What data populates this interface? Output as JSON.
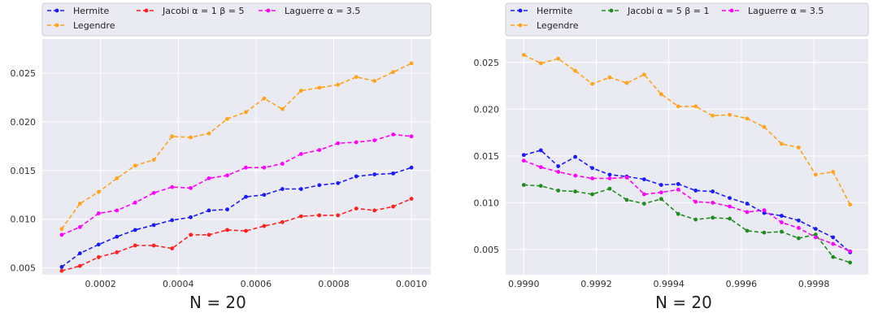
{
  "chart_data": [
    {
      "type": "line",
      "title": "N = 20",
      "xlabel": "",
      "ylabel": "",
      "xlim": [
        5e-05,
        0.00105
      ],
      "ylim": [
        0.0043,
        0.0285
      ],
      "x_ticks": [
        0.0002,
        0.0004,
        0.0006,
        0.0008,
        0.001
      ],
      "x_tick_labels": [
        "0.0002",
        "0.0004",
        "0.0006",
        "0.0008",
        "0.0010"
      ],
      "y_ticks": [
        0.005,
        0.01,
        0.015,
        0.02,
        0.025
      ],
      "y_tick_labels": [
        "0.005",
        "0.010",
        "0.015",
        "0.020",
        "0.025"
      ],
      "grid": true,
      "legend_placement": "top (above plot)",
      "x": [
        0.0001,
        0.000147,
        0.000195,
        0.000242,
        0.000289,
        0.000337,
        0.000384,
        0.000432,
        0.000479,
        0.000526,
        0.000574,
        0.000621,
        0.000668,
        0.000716,
        0.000763,
        0.000811,
        0.000858,
        0.000905,
        0.000953,
        0.001
      ],
      "series": [
        {
          "name": "Hermite",
          "color": "#1a1aff",
          "values": [
            0.0051,
            0.0065,
            0.0074,
            0.0082,
            0.0089,
            0.0094,
            0.0099,
            0.0102,
            0.0109,
            0.011,
            0.0123,
            0.0125,
            0.0131,
            0.0131,
            0.0135,
            0.0137,
            0.0144,
            0.0146,
            0.0147,
            0.0153
          ]
        },
        {
          "name": "Jacobi $\\alpha=1$ $\\beta=5$",
          "color": "#ff2020",
          "values": [
            0.0047,
            0.0052,
            0.0061,
            0.0066,
            0.0073,
            0.0073,
            0.007,
            0.0084,
            0.0084,
            0.0089,
            0.0088,
            0.0093,
            0.0097,
            0.0103,
            0.0104,
            0.0104,
            0.0111,
            0.0109,
            0.0113,
            0.0121
          ]
        },
        {
          "name": "Laguerre $\\alpha=3.5$",
          "color": "#ff00ff",
          "values": [
            0.0084,
            0.0092,
            0.0106,
            0.0109,
            0.0117,
            0.0127,
            0.0133,
            0.0132,
            0.0142,
            0.0145,
            0.0153,
            0.0153,
            0.0157,
            0.0167,
            0.0171,
            0.0178,
            0.0179,
            0.0181,
            0.0187,
            0.0185
          ]
        },
        {
          "name": "Legendre",
          "color": "#ffa31a",
          "values": [
            0.009,
            0.0116,
            0.0128,
            0.0142,
            0.0155,
            0.0161,
            0.0185,
            0.0184,
            0.0188,
            0.0203,
            0.021,
            0.0224,
            0.0213,
            0.0232,
            0.0235,
            0.0238,
            0.0246,
            0.0242,
            0.0251,
            0.026
          ]
        }
      ]
    },
    {
      "type": "line",
      "title": "N = 20",
      "xlabel": "",
      "ylabel": "",
      "xlim": [
        0.99895,
        0.99995
      ],
      "ylim": [
        0.0023,
        0.0275
      ],
      "x_ticks": [
        0.999,
        0.9992,
        0.9994,
        0.9996,
        0.9998
      ],
      "x_tick_labels": [
        "0.9990",
        "0.9992",
        "0.9994",
        "0.9996",
        "0.9998"
      ],
      "y_ticks": [
        0.005,
        0.01,
        0.015,
        0.02,
        0.025
      ],
      "y_tick_labels": [
        "0.005",
        "0.010",
        "0.015",
        "0.020",
        "0.025"
      ],
      "grid": true,
      "legend_placement": "top (above plot)",
      "x": [
        0.999,
        0.999047,
        0.999095,
        0.999142,
        0.999189,
        0.999237,
        0.999284,
        0.999332,
        0.999379,
        0.999426,
        0.999474,
        0.999521,
        0.999568,
        0.999616,
        0.999663,
        0.999711,
        0.999758,
        0.999805,
        0.999853,
        0.9999
      ],
      "series": [
        {
          "name": "Hermite",
          "color": "#1a1aff",
          "values": [
            0.0151,
            0.0156,
            0.0139,
            0.0149,
            0.0137,
            0.013,
            0.0128,
            0.0125,
            0.0119,
            0.012,
            0.0113,
            0.0112,
            0.0105,
            0.0099,
            0.0089,
            0.0086,
            0.0081,
            0.0072,
            0.0063,
            0.0047
          ]
        },
        {
          "name": "Jacobi $\\alpha=5$ $\\beta=1$",
          "color": "#1f8c1f",
          "values": [
            0.0119,
            0.0118,
            0.0113,
            0.0112,
            0.0109,
            0.0115,
            0.0103,
            0.0099,
            0.0104,
            0.0088,
            0.0082,
            0.0084,
            0.0083,
            0.007,
            0.0068,
            0.0069,
            0.0062,
            0.0066,
            0.0042,
            0.0036
          ]
        },
        {
          "name": "Laguerre $\\alpha=3.5$",
          "color": "#ff00ff",
          "values": [
            0.0145,
            0.0138,
            0.0133,
            0.0129,
            0.0126,
            0.0126,
            0.0127,
            0.0109,
            0.0111,
            0.0114,
            0.0101,
            0.01,
            0.0096,
            0.009,
            0.0092,
            0.0079,
            0.0073,
            0.0063,
            0.0056,
            0.0048
          ]
        },
        {
          "name": "Legendre",
          "color": "#ffa31a",
          "values": [
            0.0258,
            0.0249,
            0.0254,
            0.0241,
            0.0227,
            0.0234,
            0.0228,
            0.0237,
            0.0216,
            0.0203,
            0.0203,
            0.0193,
            0.0194,
            0.019,
            0.0181,
            0.0163,
            0.0159,
            0.013,
            0.0133,
            0.0098
          ]
        }
      ]
    }
  ]
}
